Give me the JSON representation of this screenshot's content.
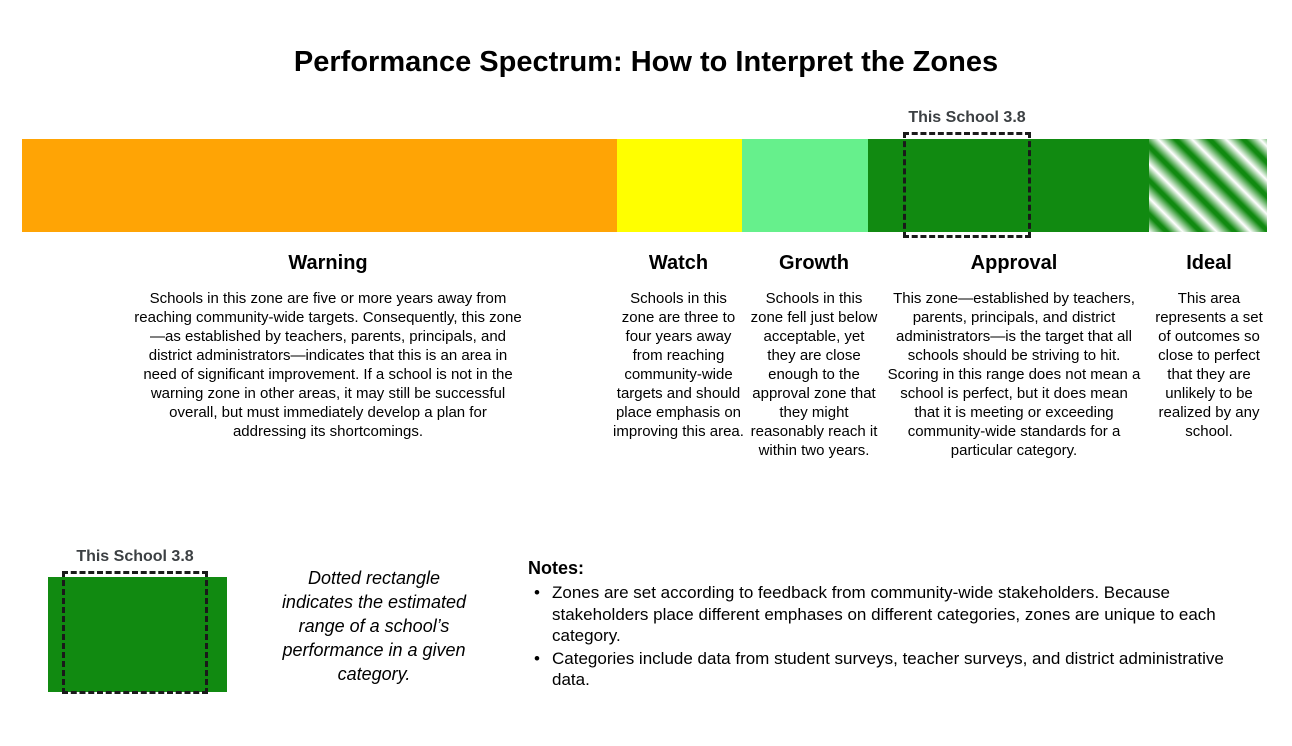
{
  "title": "Performance Spectrum: How to Interpret the Zones",
  "bar_marker": {
    "label": "This School 3.8",
    "label_color": "#3c4043"
  },
  "zones": [
    {
      "name": "Warning",
      "color": "#FFA405",
      "description": "Schools in this zone are five or more years away from reaching community-wide targets. Consequently, this zone—as established by teachers, parents, principals, and district administrators—indicates that this is an area in need of significant improvement. If a school is not in the warning zone in other areas, it may still be successful overall, but must immediately develop a plan for addressing its shortcomings."
    },
    {
      "name": "Watch",
      "color": "#FFFF00",
      "description": "Schools in this zone are three to four years away from reaching community-wide targets and should place emphasis on improving this area."
    },
    {
      "name": "Growth",
      "color": "#66F08C",
      "description": "Schools in this zone fell just below acceptable, yet they are close enough to the approval zone that they might reasonably reach it within two years."
    },
    {
      "name": "Approval",
      "color": "#118A11",
      "description": "This zone—established by teachers, parents, principals, and district administrators—is the target that all schools should be striving to hit. Scoring in this range does not mean a school is perfect, but it does mean that it is meeting or exceeding community-wide standards for a particular category."
    },
    {
      "name": "Ideal",
      "color": "#118A11",
      "stripe_colors": [
        "#118A11",
        "#FFFFFF"
      ],
      "description": "This area represents a set of outcomes so close to perfect that they are unlikely to be realized by any school."
    }
  ],
  "legend": {
    "marker_label": "This School 3.8",
    "swatch_color": "#118A11",
    "caption": "Dotted rectangle indicates the estimated range of a school’s performance in a given category."
  },
  "notes": {
    "heading": "Notes:",
    "items": [
      "Zones are set according to feedback from community-wide stakeholders. Because stakeholders place different emphases on different categories, zones are unique to each category.",
      "Categories include data from student surveys, teacher surveys, and district administrative data."
    ]
  }
}
